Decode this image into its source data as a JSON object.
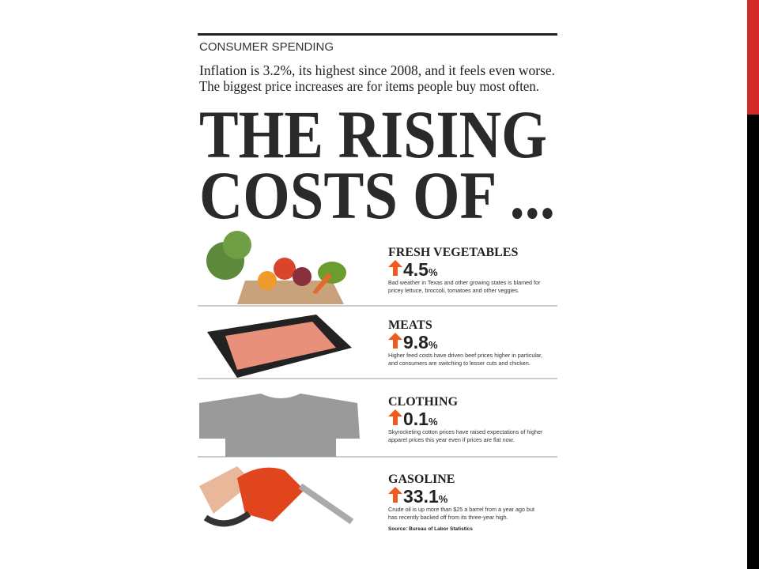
{
  "header": {
    "section": "CONSUMER SPENDING",
    "subtitle": [
      "Inflation is 3.2%, its highest since 2008, and it feels even worse.",
      "The biggest price increases are for items people buy most often."
    ],
    "title": [
      "THE RISING",
      "COSTS OF ..."
    ]
  },
  "items": [
    {
      "name": "FRESH VEGETABLES",
      "change": 4.5,
      "unit": "%",
      "description": [
        "Bad weather in Texas and other growing states is blamed for",
        "pricey lettuce, broccoli, tomatoes and other veggies."
      ]
    },
    {
      "name": "MEATS",
      "change": 9.8,
      "unit": "%",
      "description": [
        "Higher feed costs have driven beef prices higher in particular,",
        "and consumers are switching to lesser cuts and chicken."
      ]
    },
    {
      "name": "CLOTHING",
      "change": 0.1,
      "unit": "%",
      "description": [
        "Skyrocketing cotton prices have raised expectations of higher",
        "apparel prices this year even if prices are flat now."
      ]
    },
    {
      "name": "GASOLINE",
      "change": 33.1,
      "unit": "%",
      "description": [
        "Crude oil is up more than $25 a barrel from a year ago but",
        "has recently backed off from its three-year high."
      ]
    }
  ],
  "source": "Source: Bureau of Labor Statistics"
}
